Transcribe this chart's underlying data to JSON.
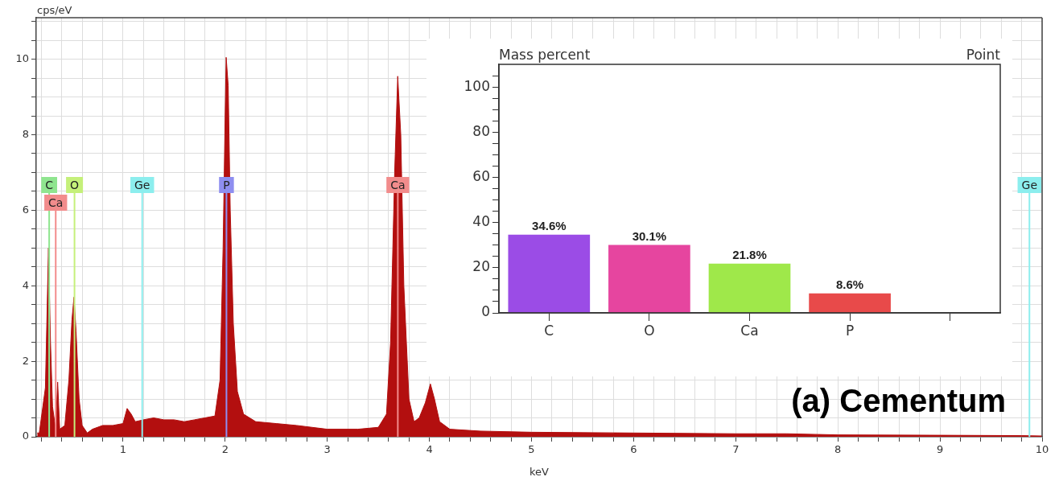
{
  "chart_data": [
    {
      "type": "area",
      "xlabel": "keV",
      "ylabel": "cps/eV",
      "color": "#b30f0f",
      "grid": true,
      "annotations": [
        "(a) Cementum"
      ],
      "x": [
        0.16,
        0.18,
        0.2,
        0.24,
        0.27,
        0.29,
        0.31,
        0.34,
        0.36,
        0.38,
        0.43,
        0.47,
        0.5,
        0.52,
        0.54,
        0.57,
        0.6,
        0.65,
        0.7,
        0.8,
        0.9,
        1.0,
        1.04,
        1.08,
        1.12,
        1.2,
        1.3,
        1.4,
        1.5,
        1.6,
        1.7,
        1.8,
        1.9,
        1.95,
        1.98,
        2.0,
        2.01,
        2.03,
        2.05,
        2.08,
        2.12,
        2.18,
        2.3,
        2.5,
        2.7,
        3.0,
        3.3,
        3.5,
        3.58,
        3.62,
        3.66,
        3.69,
        3.72,
        3.75,
        3.8,
        3.85,
        3.9,
        3.96,
        4.01,
        4.05,
        4.1,
        4.2,
        4.5,
        5,
        6,
        7,
        7.5,
        8,
        9,
        9.8,
        10
      ],
      "values": [
        0.1,
        0.1,
        0.5,
        1.3,
        5.0,
        2.5,
        0.8,
        0.2,
        1.45,
        0.2,
        0.3,
        1.5,
        3.1,
        3.7,
        2.8,
        1.0,
        0.3,
        0.1,
        0.2,
        0.3,
        0.3,
        0.35,
        0.75,
        0.6,
        0.4,
        0.45,
        0.5,
        0.45,
        0.45,
        0.4,
        0.45,
        0.5,
        0.55,
        1.5,
        5.0,
        8.5,
        10.05,
        9.3,
        6.0,
        3.0,
        1.2,
        0.6,
        0.4,
        0.35,
        0.3,
        0.2,
        0.2,
        0.25,
        0.6,
        2.5,
        7.0,
        9.55,
        8.0,
        4.0,
        1.0,
        0.4,
        0.5,
        0.9,
        1.4,
        1.0,
        0.4,
        0.2,
        0.15,
        0.12,
        0.1,
        0.08,
        0.08,
        0.05,
        0.04,
        0.03,
        0.02
      ],
      "xlim": [
        0.15,
        10
      ],
      "xticks": [
        {
          "value": 0.2,
          "label": null
        },
        {
          "value": 0.4,
          "label": null
        },
        {
          "value": 0.6,
          "label": null
        },
        {
          "value": 0.8,
          "label": null
        },
        1,
        {
          "value": 1.2,
          "label": null
        },
        {
          "value": 1.4,
          "label": null
        },
        {
          "value": 1.6,
          "label": null
        },
        {
          "value": 1.8,
          "label": null
        },
        2,
        {
          "value": 2.2,
          "label": null
        },
        {
          "value": 2.4,
          "label": null
        },
        {
          "value": 2.6,
          "label": null
        },
        {
          "value": 2.8,
          "label": null
        },
        3,
        {
          "value": 3.2,
          "label": null
        },
        {
          "value": 3.4,
          "label": null
        },
        {
          "value": 3.6,
          "label": null
        },
        {
          "value": 3.8,
          "label": null
        },
        4,
        {
          "value": 4.2,
          "label": null
        },
        {
          "value": 4.4,
          "label": null
        },
        {
          "value": 4.6,
          "label": null
        },
        {
          "value": 4.8,
          "label": null
        },
        5,
        {
          "value": 5.2,
          "label": null
        },
        {
          "value": 5.4,
          "label": null
        },
        {
          "value": 5.6,
          "label": null
        },
        {
          "value": 5.8,
          "label": null
        },
        6,
        {
          "value": 6.2,
          "label": null
        },
        {
          "value": 6.4,
          "label": null
        },
        {
          "value": 6.6,
          "label": null
        },
        {
          "value": 6.8,
          "label": null
        },
        7,
        {
          "value": 7.2,
          "label": null
        },
        {
          "value": 7.4,
          "label": null
        },
        {
          "value": 7.6,
          "label": null
        },
        {
          "value": 7.8,
          "label": null
        },
        8,
        {
          "value": 8.2,
          "label": null
        },
        {
          "value": 8.4,
          "label": null
        },
        {
          "value": 8.6,
          "label": null
        },
        {
          "value": 8.8,
          "label": null
        },
        9,
        {
          "value": 9.2,
          "label": null
        },
        {
          "value": 9.4,
          "label": null
        },
        {
          "value": 9.6,
          "label": null
        },
        {
          "value": 9.8,
          "label": null
        },
        10
      ],
      "ylim": [
        0,
        11.1
      ],
      "yticks": [
        0,
        {
          "value": 0.5,
          "label": null
        },
        {
          "value": 1,
          "label": null
        },
        {
          "value": 1.5,
          "label": null
        },
        2,
        {
          "value": 2.5,
          "label": null
        },
        {
          "value": 3,
          "label": null
        },
        {
          "value": 3.5,
          "label": null
        },
        4,
        {
          "value": 4.5,
          "label": null
        },
        {
          "value": 5,
          "label": null
        },
        {
          "value": 5.5,
          "label": null
        },
        6,
        {
          "value": 6.5,
          "label": null
        },
        {
          "value": 7,
          "label": null
        },
        {
          "value": 7.5,
          "label": null
        },
        8,
        {
          "value": 8.5,
          "label": null
        },
        {
          "value": 9,
          "label": null
        },
        {
          "value": 9.5,
          "label": null
        },
        10,
        {
          "value": 10.5,
          "label": null
        },
        {
          "value": 11,
          "label": null
        }
      ],
      "ref_lines": [
        {
          "axis": "x",
          "value": 0.277,
          "label": "C",
          "color": "#8fe58f"
        },
        {
          "axis": "x",
          "value": 0.341,
          "label": "Ca",
          "color": "#f28c8c"
        },
        {
          "axis": "x",
          "value": 0.525,
          "label": "O",
          "color": "#c5f07a"
        },
        {
          "axis": "x",
          "value": 1.188,
          "label": "Ge",
          "color": "#8ceeee"
        },
        {
          "axis": "x",
          "value": 2.013,
          "label": "P",
          "color": "#8e8ef0"
        },
        {
          "axis": "x",
          "value": 3.691,
          "label": "Ca",
          "color": "#f28c8c"
        },
        {
          "axis": "x",
          "value": 9.876,
          "label": "Ge",
          "color": "#8ceeee"
        }
      ]
    },
    {
      "type": "bar",
      "title": "Mass percent",
      "annotations": [
        "Point"
      ],
      "categories": [
        "C",
        "O",
        "Ca",
        "P",
        null
      ],
      "values": [
        34.6,
        30.1,
        21.8,
        8.6,
        null
      ],
      "colors": [
        "#9b4ce6",
        "#e6459f",
        "#9fe84a",
        "#e84a4a",
        null
      ],
      "value_labels": [
        "34.6%",
        "30.1%",
        "21.8%",
        "8.6%",
        null
      ],
      "ylim": [
        0,
        110
      ],
      "yticks": [
        0,
        {
          "value": 5,
          "label": null
        },
        {
          "value": 10,
          "label": null
        },
        {
          "value": 15,
          "label": null
        },
        20,
        {
          "value": 25,
          "label": null
        },
        {
          "value": 30,
          "label": null
        },
        {
          "value": 35,
          "label": null
        },
        40,
        {
          "value": 45,
          "label": null
        },
        {
          "value": 50,
          "label": null
        },
        {
          "value": 55,
          "label": null
        },
        60,
        {
          "value": 65,
          "label": null
        },
        {
          "value": 70,
          "label": null
        },
        {
          "value": 75,
          "label": null
        },
        80,
        {
          "value": 85,
          "label": null
        },
        {
          "value": 90,
          "label": null
        },
        {
          "value": 95,
          "label": null
        },
        100,
        {
          "value": 105,
          "label": null
        }
      ]
    }
  ]
}
